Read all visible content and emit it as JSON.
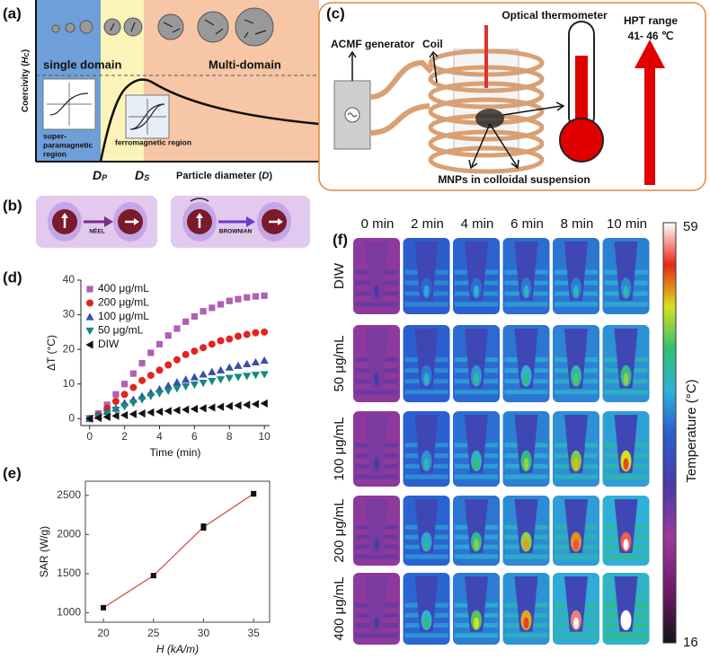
{
  "chart_data": [
    {
      "type": "scatter",
      "panel": "(d)",
      "x_label": "Time (min)",
      "y_label": "ΔT (°C)",
      "x": [
        0,
        0.5,
        1,
        1.5,
        2,
        2.5,
        3,
        3.5,
        4,
        4.5,
        5,
        5.5,
        6,
        6.5,
        7,
        7.5,
        8,
        8.5,
        9,
        9.5,
        10
      ],
      "series": [
        {
          "name": "400 μg/mL",
          "color": "#b05fb4",
          "marker": "square",
          "values": [
            0,
            1.5,
            4,
            7,
            10,
            13,
            16,
            19,
            21.5,
            24,
            26,
            28,
            29.5,
            31,
            32,
            33,
            34,
            34.5,
            35,
            35.3,
            35.5
          ]
        },
        {
          "name": "200 μg/mL",
          "color": "#e32323",
          "marker": "circle",
          "values": [
            0,
            1,
            3,
            5,
            7,
            9,
            11,
            12.5,
            14,
            15.5,
            17,
            18.5,
            19.5,
            20.5,
            21.5,
            22.5,
            23,
            23.8,
            24.3,
            24.8,
            25
          ]
        },
        {
          "name": "100 μg/mL",
          "color": "#3a4fa8",
          "marker": "triangle-up",
          "values": [
            0,
            0.8,
            2,
            3,
            4.5,
            5.5,
            6.5,
            7.5,
            8.5,
            9.5,
            10.5,
            11.3,
            12,
            12.8,
            13.5,
            14,
            14.8,
            15.3,
            15.8,
            16.3,
            16.8
          ]
        },
        {
          "name": "50 μg/mL",
          "color": "#138a82",
          "marker": "triangle-down",
          "values": [
            0,
            0.6,
            1.5,
            2.5,
            3.5,
            4.5,
            5.5,
            6.5,
            7.3,
            8,
            8.7,
            9.3,
            9.8,
            10.3,
            10.8,
            11.3,
            11.7,
            12,
            12.3,
            12.6,
            12.8
          ]
        },
        {
          "name": "DIW",
          "color": "#111111",
          "marker": "triangle-left",
          "values": [
            0,
            0.2,
            0.5,
            0.8,
            1,
            1.3,
            1.5,
            1.8,
            2,
            2.2,
            2.4,
            2.6,
            2.8,
            3,
            3.2,
            3.4,
            3.6,
            3.8,
            4,
            4.2,
            4.4
          ]
        }
      ],
      "xlim": [
        -0.5,
        10.3
      ],
      "xticks": [
        0,
        2,
        4,
        6,
        8,
        10
      ],
      "ylim": [
        -2,
        40
      ],
      "yticks": [
        0,
        10,
        20,
        30,
        40
      ],
      "legend": "upper left"
    },
    {
      "type": "line",
      "panel": "(e)",
      "x_label": "H (kA/m)",
      "y_label": "SAR (W/g)",
      "x": [
        20,
        25,
        30,
        35
      ],
      "values": [
        1065,
        1475,
        2095,
        2520
      ],
      "errors": [
        20,
        20,
        40,
        30
      ],
      "color": "#d9534f",
      "xlim": [
        18.2,
        36.6
      ],
      "xticks": [
        20,
        25,
        30,
        35
      ],
      "ylim": [
        880,
        2680
      ],
      "yticks": [
        1000,
        1500,
        2000,
        2500
      ]
    }
  ],
  "panel_a": {
    "label": "(a)",
    "single_domain": "single domain",
    "multi_domain": "Multi-domain",
    "y_label": [
      "Coercivity (",
      "H",
      "C",
      ")"
    ],
    "superparamagnetic": [
      "super-",
      "paramagnetic",
      "region"
    ],
    "ferromagnetic": "ferromagnetic region",
    "dp": [
      "D",
      "P"
    ],
    "ds": [
      "D",
      "S"
    ],
    "x_label": [
      "Particle diameter (",
      "D",
      ")"
    ]
  },
  "panel_b": {
    "label": "(b)",
    "neel": "NÉEL",
    "brownian": "BROWNIAN"
  },
  "panel_c": {
    "label": "(c)",
    "thermometer": "Optical thermometer",
    "generator": "ACMF generator",
    "coil": "Coil",
    "hpt": "HPT range",
    "hpt_range": "41- 46 ℃",
    "mnps": "MNPs in colloidal suspension"
  },
  "panel_f": {
    "label": "(f)",
    "columns": [
      "0 min",
      "2 min",
      "4 min",
      "6 min",
      "8 min",
      "10 min"
    ],
    "rows": [
      "DIW",
      "50 μg/mL",
      "100 μg/mL",
      "200 μg/mL",
      "400 μg/mL"
    ],
    "colorbar": {
      "label": "Temperature (°C)",
      "max": "59",
      "min": "16"
    }
  }
}
